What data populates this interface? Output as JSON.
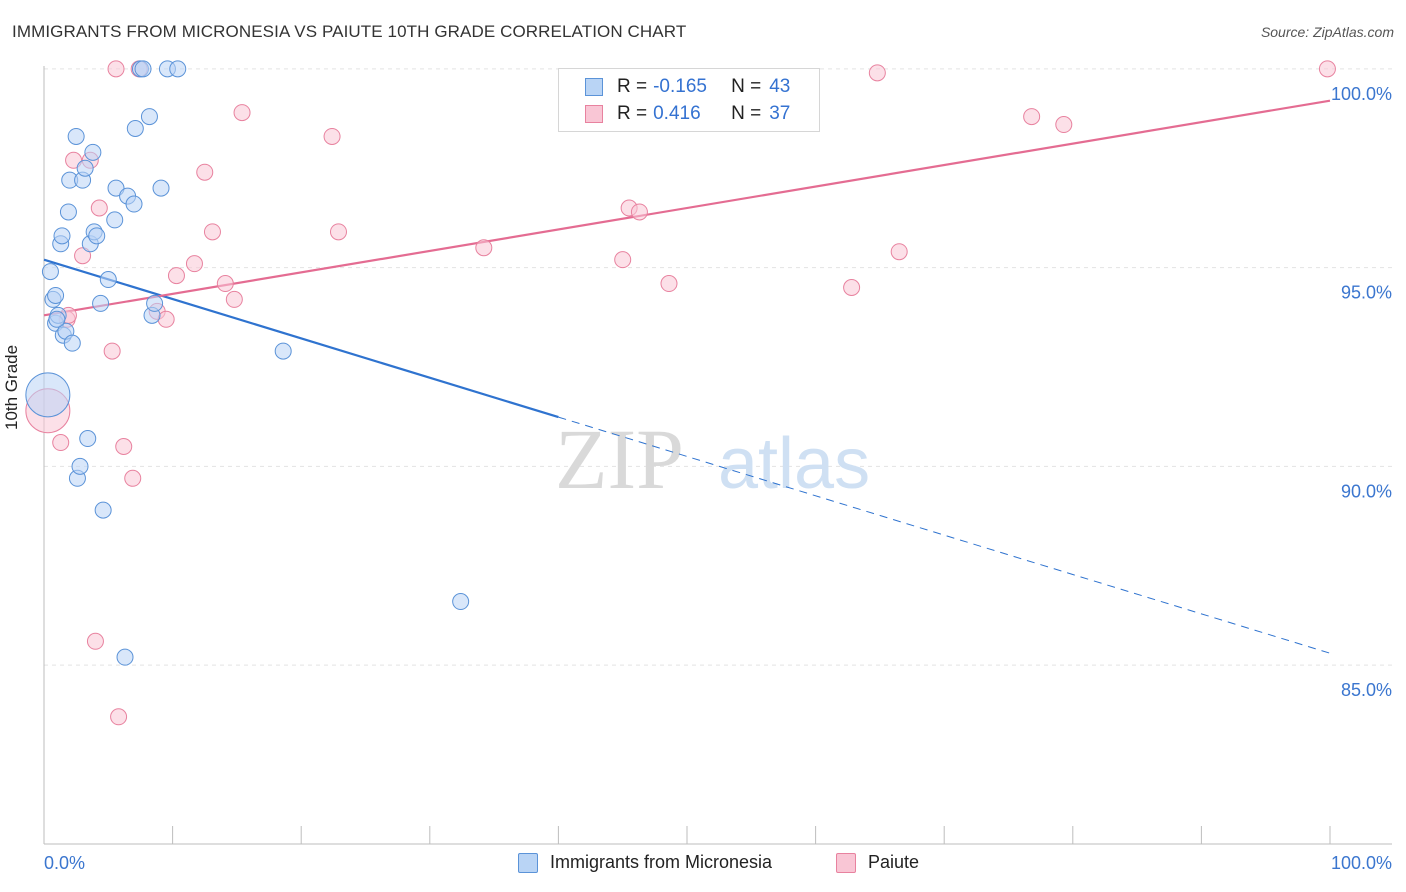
{
  "title": "IMMIGRANTS FROM MICRONESIA VS PAIUTE 10TH GRADE CORRELATION CHART",
  "source": "Source: ZipAtlas.com",
  "watermark": {
    "zip": "ZIP",
    "atlas": "atlas"
  },
  "legend": {
    "r_label": "R =",
    "n_label": "N =",
    "series": [
      {
        "name": "Immigrants from Micronesia",
        "r": "-0.165",
        "n": "43",
        "fill": "#b9d4f5",
        "stroke": "#5b93d8"
      },
      {
        "name": "Paiute",
        "r": "0.416",
        "n": "37",
        "fill": "#f9c6d5",
        "stroke": "#e8829f"
      }
    ]
  },
  "chart_data": {
    "type": "scatter",
    "title": "IMMIGRANTS FROM MICRONESIA VS PAIUTE 10TH GRADE CORRELATION CHART",
    "xlabel": "",
    "ylabel": "10th Grade",
    "xlim": [
      0,
      100
    ],
    "ylim": [
      80.5,
      100.5
    ],
    "x_tick_labels": [
      "0.0%",
      "100.0%"
    ],
    "y_ticks": [
      85,
      90,
      95,
      100
    ],
    "y_tick_labels": [
      "85.0%",
      "90.0%",
      "95.0%",
      "100.0%"
    ],
    "grid": true,
    "legend_position": "top-center",
    "series": [
      {
        "name": "Immigrants from Micronesia",
        "color": "#5b93d8",
        "fill": "#b9d4f5",
        "points": [
          [
            0.3,
            91.8,
            "large"
          ],
          [
            0.5,
            94.9
          ],
          [
            0.7,
            94.2
          ],
          [
            0.9,
            94.3
          ],
          [
            0.9,
            93.6
          ],
          [
            1.1,
            93.8
          ],
          [
            1.3,
            95.6
          ],
          [
            1.4,
            95.8
          ],
          [
            1.5,
            93.3
          ],
          [
            1.7,
            93.4
          ],
          [
            1.9,
            96.4
          ],
          [
            2.0,
            97.2
          ],
          [
            2.2,
            93.1
          ],
          [
            2.5,
            98.3
          ],
          [
            2.6,
            89.7
          ],
          [
            2.8,
            90.0
          ],
          [
            3.0,
            97.2
          ],
          [
            3.2,
            97.5
          ],
          [
            3.4,
            90.7
          ],
          [
            3.6,
            95.6
          ],
          [
            3.8,
            97.9
          ],
          [
            3.9,
            95.9
          ],
          [
            4.1,
            95.8
          ],
          [
            4.4,
            94.1
          ],
          [
            4.6,
            88.9
          ],
          [
            5.0,
            94.7
          ],
          [
            5.5,
            96.2
          ],
          [
            5.6,
            97.0
          ],
          [
            6.5,
            96.8
          ],
          [
            6.3,
            85.2
          ],
          [
            7.0,
            96.6
          ],
          [
            7.1,
            98.5
          ],
          [
            7.5,
            100.0
          ],
          [
            8.2,
            98.8
          ],
          [
            8.4,
            93.8
          ],
          [
            8.6,
            94.1
          ],
          [
            9.1,
            97.0
          ],
          [
            9.6,
            100.0
          ],
          [
            10.4,
            100.0
          ],
          [
            18.6,
            92.9
          ],
          [
            32.4,
            86.6
          ],
          [
            7.7,
            100.0
          ],
          [
            1.0,
            93.7
          ]
        ],
        "trend": {
          "x0": 0,
          "y0": 95.2,
          "x1": 100,
          "y1": 85.3,
          "solid_until": 40
        }
      },
      {
        "name": "Paiute",
        "color": "#e8829f",
        "fill": "#f9c6d5",
        "points": [
          [
            0.3,
            91.4,
            "large"
          ],
          [
            1.3,
            90.6
          ],
          [
            1.8,
            93.7
          ],
          [
            2.3,
            97.7
          ],
          [
            3.0,
            95.3
          ],
          [
            3.6,
            97.7
          ],
          [
            4.0,
            85.6
          ],
          [
            4.3,
            96.5
          ],
          [
            5.3,
            92.9
          ],
          [
            5.8,
            83.7
          ],
          [
            6.2,
            90.5
          ],
          [
            6.9,
            89.7
          ],
          [
            7.4,
            100.0
          ],
          [
            8.8,
            93.9
          ],
          [
            9.5,
            93.7
          ],
          [
            10.3,
            94.8
          ],
          [
            11.7,
            95.1
          ],
          [
            12.5,
            97.4
          ],
          [
            13.1,
            95.9
          ],
          [
            14.1,
            94.6
          ],
          [
            14.8,
            94.2
          ],
          [
            15.4,
            98.9
          ],
          [
            22.4,
            98.3
          ],
          [
            22.9,
            95.9
          ],
          [
            34.2,
            95.5
          ],
          [
            45.0,
            95.2
          ],
          [
            45.5,
            96.5
          ],
          [
            46.3,
            96.4
          ],
          [
            48.6,
            94.6
          ],
          [
            64.8,
            99.9
          ],
          [
            62.8,
            94.5
          ],
          [
            66.5,
            95.4
          ],
          [
            76.8,
            98.8
          ],
          [
            79.3,
            98.6
          ],
          [
            99.8,
            100.0
          ],
          [
            5.6,
            100.0
          ],
          [
            1.9,
            93.8
          ]
        ],
        "trend": {
          "x0": 0,
          "y0": 93.8,
          "x1": 100,
          "y1": 99.2,
          "solid_until": 100
        }
      }
    ]
  }
}
